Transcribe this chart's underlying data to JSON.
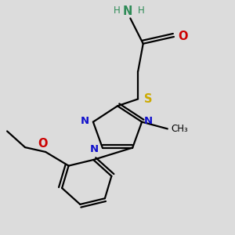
{
  "background_color": "#dcdcdc",
  "bond_color": "#000000",
  "bond_width": 1.6,
  "figsize": [
    3.0,
    3.0
  ],
  "dpi": 100,
  "xlim": [
    0.05,
    0.95
  ],
  "ylim": [
    0.0,
    1.0
  ],
  "colors": {
    "N": "#1010cc",
    "O": "#cc0000",
    "S": "#ccaa00",
    "NH": "#2e8b57",
    "C": "#000000"
  }
}
